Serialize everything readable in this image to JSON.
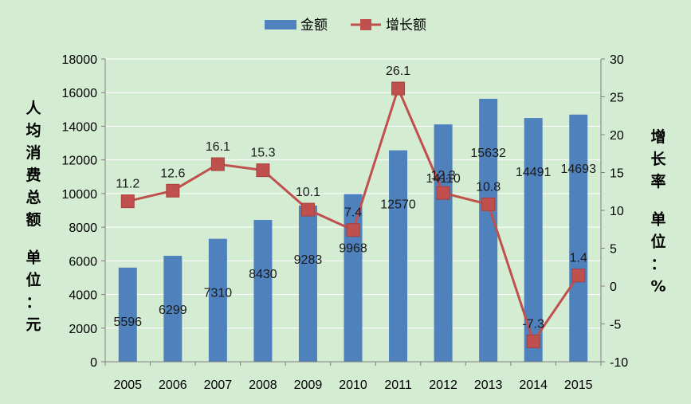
{
  "chart_data": {
    "type": "bar+line",
    "categories": [
      "2005",
      "2006",
      "2007",
      "2008",
      "2009",
      "2010",
      "2011",
      "2012",
      "2013",
      "2014",
      "2015"
    ],
    "series": [
      {
        "name": "金额",
        "type": "bar",
        "axis": "left",
        "values": [
          5596,
          6299,
          7310,
          8430,
          9283,
          9968,
          12570,
          14110,
          15632,
          14491,
          14693
        ],
        "labels": [
          "5596",
          "6299",
          "7310",
          "8430",
          "9283",
          "9968",
          "12570",
          "14110",
          "15632",
          "14491",
          "14693"
        ]
      },
      {
        "name": "增长额",
        "type": "line",
        "axis": "right",
        "values": [
          11.2,
          12.6,
          16.1,
          15.3,
          10.1,
          7.4,
          26.1,
          12.3,
          10.8,
          -7.3,
          1.4
        ],
        "labels": [
          "11.2",
          "12.6",
          "16.1",
          "15.3",
          "10.1",
          "7.4",
          "26.1",
          "12.3",
          "10.8",
          "-7.3",
          "1.4"
        ]
      }
    ],
    "y_left": {
      "label": "人均消费总额 单位：元",
      "range": [
        0,
        18000
      ],
      "ticks": [
        "0",
        "2000",
        "4000",
        "6000",
        "8000",
        "10000",
        "12000",
        "14000",
        "16000",
        "18000"
      ]
    },
    "y_right": {
      "label": "增长率 单位：%",
      "range": [
        -10,
        30
      ],
      "ticks": [
        "-10",
        "-5",
        "0",
        "5",
        "10",
        "15",
        "20",
        "25",
        "30"
      ]
    },
    "legend": {
      "placement": "top-center"
    },
    "colors": {
      "bar": "#4f81bd",
      "line": "#c0504d",
      "marker": "#c0504d",
      "background": "#d3ecd2",
      "grid": "#ffffff"
    },
    "grid": true
  }
}
